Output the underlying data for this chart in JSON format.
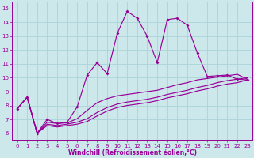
{
  "background_color": "#cce8eb",
  "grid_color": "#aad4d8",
  "line_color": "#990099",
  "xlabel": "Windchill (Refroidissement éolien,°C)",
  "xlabel_fontsize": 5.5,
  "tick_fontsize": 5.0,
  "xlim_min": -0.5,
  "xlim_max": 23.5,
  "ylim_min": 5.5,
  "ylim_max": 15.5,
  "xticks": [
    0,
    1,
    2,
    3,
    4,
    5,
    6,
    7,
    8,
    9,
    10,
    11,
    12,
    13,
    14,
    15,
    16,
    17,
    18,
    19,
    20,
    21,
    22,
    23
  ],
  "yticks": [
    6,
    7,
    8,
    9,
    10,
    11,
    12,
    13,
    14,
    15
  ],
  "line1_y": [
    7.75,
    8.6,
    6.0,
    6.55,
    6.45,
    6.55,
    6.65,
    6.85,
    7.25,
    7.6,
    7.85,
    8.0,
    8.1,
    8.2,
    8.35,
    8.55,
    8.7,
    8.85,
    9.05,
    9.2,
    9.4,
    9.55,
    9.65,
    9.85
  ],
  "line2_y": [
    7.75,
    8.6,
    6.0,
    6.65,
    6.55,
    6.65,
    6.8,
    7.05,
    7.5,
    7.85,
    8.1,
    8.25,
    8.35,
    8.45,
    8.6,
    8.8,
    8.95,
    9.1,
    9.3,
    9.45,
    9.65,
    9.8,
    9.9,
    10.0
  ],
  "line3_y": [
    7.75,
    8.6,
    6.0,
    6.8,
    6.7,
    6.75,
    7.05,
    7.65,
    8.2,
    8.5,
    8.7,
    8.8,
    8.9,
    9.0,
    9.1,
    9.3,
    9.5,
    9.65,
    9.85,
    9.95,
    10.05,
    10.15,
    10.25,
    9.9
  ],
  "line4_y": [
    7.75,
    8.6,
    6.0,
    7.0,
    6.7,
    6.8,
    7.9,
    10.2,
    11.1,
    10.3,
    13.2,
    14.8,
    14.3,
    13.0,
    11.1,
    14.2,
    14.3,
    13.8,
    11.8,
    10.1,
    10.15,
    10.2,
    9.9,
    9.85
  ]
}
